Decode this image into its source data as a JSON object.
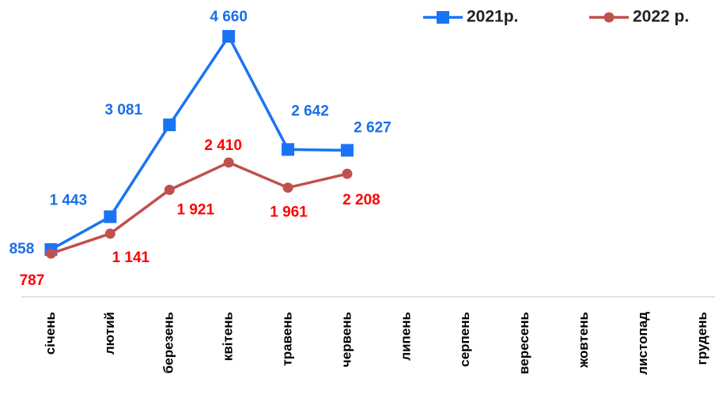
{
  "chart_data": {
    "type": "line",
    "categories": [
      "січень",
      "лютий",
      "березень",
      "квітень",
      "травень",
      "червень",
      "липень",
      "серпень",
      "вересень",
      "жовтень",
      "листопад",
      "грудень"
    ],
    "series": [
      {
        "name": "2021р.",
        "color": "#1a73f5",
        "label_color": "#1a6fe8",
        "marker": "square",
        "values": [
          858,
          1443,
          3081,
          4660,
          2642,
          2627,
          null,
          null,
          null,
          null,
          null,
          null
        ],
        "value_labels": [
          "858",
          "1 443",
          "3 081",
          "4 660",
          "2 642",
          "2 627",
          null,
          null,
          null,
          null,
          null,
          null
        ]
      },
      {
        "name": "2022 р.",
        "color": "#c0504d",
        "label_color": "#ff0000",
        "marker": "circle",
        "values": [
          787,
          1141,
          1921,
          2410,
          1961,
          2208,
          null,
          null,
          null,
          null,
          null,
          null
        ],
        "value_labels": [
          "787",
          "1 141",
          "1 921",
          "2 410",
          "1 961",
          "2 208",
          null,
          null,
          null,
          null,
          null,
          null
        ]
      }
    ],
    "legend": "top-right",
    "grid": false
  }
}
